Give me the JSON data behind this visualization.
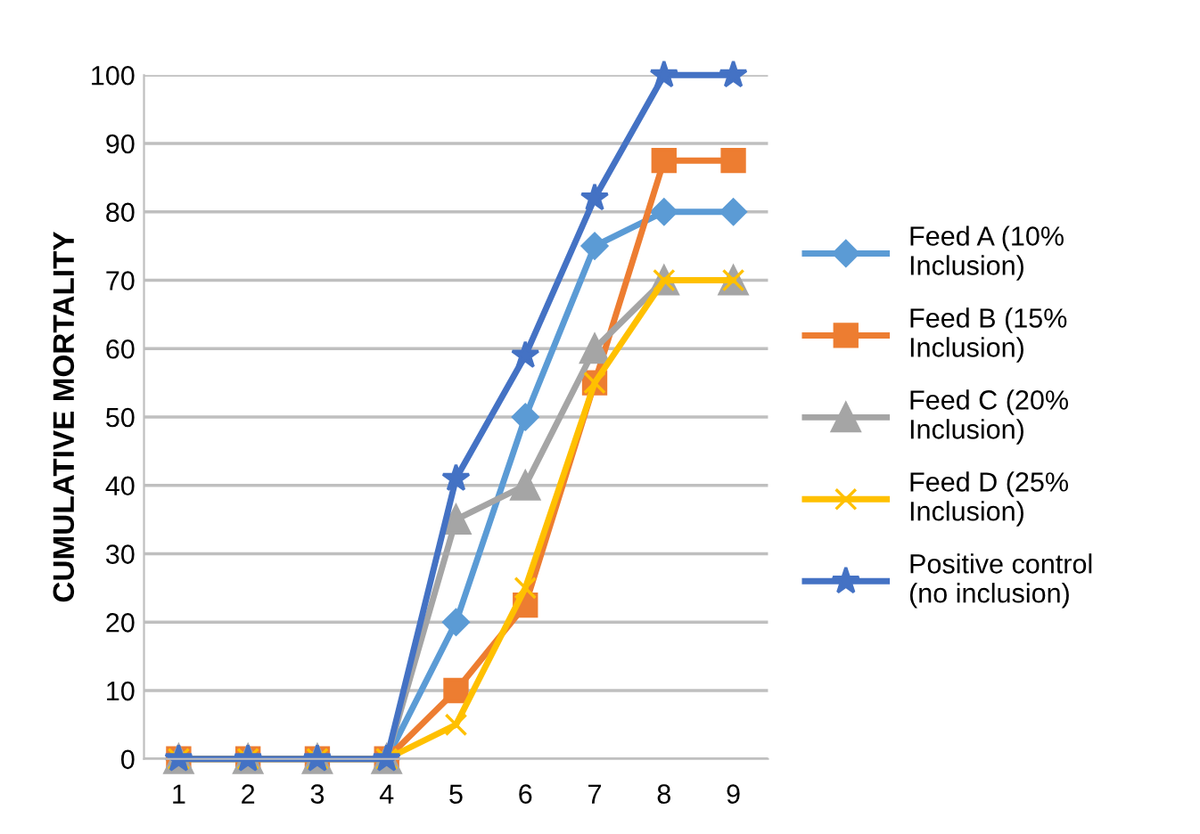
{
  "chart_data": {
    "type": "line",
    "ylabel": "CUMULATIVE MORTALITY",
    "categories": [
      "1",
      "2",
      "3",
      "4",
      "5",
      "6",
      "7",
      "8",
      "9"
    ],
    "series": [
      {
        "name": "Feed A (10% Inclusion)",
        "color": "#5b9bd5",
        "marker": "diamond",
        "values": [
          0,
          0,
          0,
          0,
          20,
          50,
          75,
          80,
          80
        ]
      },
      {
        "name": "Feed B (15% Inclusion)",
        "color": "#ed7d31",
        "marker": "square",
        "values": [
          0,
          0,
          0,
          0,
          10,
          22.5,
          55,
          87.5,
          87.5
        ]
      },
      {
        "name": "Feed C (20% Inclusion)",
        "color": "#a5a5a5",
        "marker": "triangle",
        "values": [
          0,
          0,
          0,
          0,
          35,
          40,
          60,
          70,
          70
        ]
      },
      {
        "name": "Feed D (25% Inclusion)",
        "color": "#ffc000",
        "marker": "cross",
        "values": [
          0,
          0,
          0,
          0,
          5,
          25,
          55,
          70,
          70
        ]
      },
      {
        "name": "Positive control (no inclusion)",
        "color": "#4472c4",
        "marker": "star",
        "values": [
          0,
          0,
          0,
          0,
          41,
          59,
          82,
          100,
          100
        ]
      }
    ],
    "ylim": [
      0,
      100
    ],
    "yticks": [
      0,
      10,
      20,
      30,
      40,
      50,
      60,
      70,
      80,
      90,
      100
    ],
    "grid": "y",
    "legend": "right",
    "line_style": "solid"
  }
}
